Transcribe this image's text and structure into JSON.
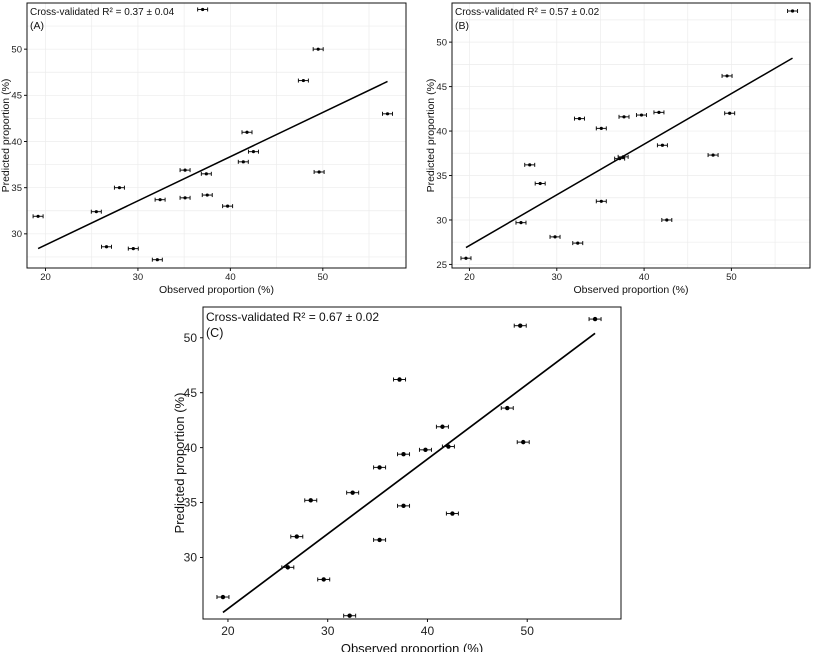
{
  "chart_data": [
    {
      "type": "scatter",
      "panel_label": "(A)",
      "annotation": "Cross-validated R² = 0.37 ± 0.04",
      "xlabel": "Observed proportion (%)",
      "ylabel": "Predicted proportion (%)",
      "xlim": [
        18,
        59
      ],
      "ylim": [
        26.3,
        55.0
      ],
      "xticks": [
        20,
        30,
        40,
        50
      ],
      "yticks": [
        30,
        35,
        40,
        45,
        50
      ],
      "grid": true,
      "points": [
        {
          "x": 19.2,
          "y": 31.9
        },
        {
          "x": 25.5,
          "y": 32.4
        },
        {
          "x": 26.6,
          "y": 28.6
        },
        {
          "x": 28.0,
          "y": 35.0
        },
        {
          "x": 29.5,
          "y": 28.4
        },
        {
          "x": 32.1,
          "y": 27.2
        },
        {
          "x": 32.4,
          "y": 33.7
        },
        {
          "x": 35.1,
          "y": 36.9
        },
        {
          "x": 35.1,
          "y": 33.9
        },
        {
          "x": 37.0,
          "y": 54.3
        },
        {
          "x": 37.4,
          "y": 36.5
        },
        {
          "x": 37.5,
          "y": 34.2
        },
        {
          "x": 39.7,
          "y": 33.0
        },
        {
          "x": 41.4,
          "y": 37.8
        },
        {
          "x": 41.8,
          "y": 41.0
        },
        {
          "x": 42.5,
          "y": 38.9
        },
        {
          "x": 47.9,
          "y": 46.6
        },
        {
          "x": 49.5,
          "y": 50.0
        },
        {
          "x": 49.6,
          "y": 36.7
        },
        {
          "x": 57.0,
          "y": 43.0
        }
      ],
      "fit_line": {
        "x": [
          19.2,
          57.0
        ],
        "y": [
          28.4,
          46.5
        ]
      }
    },
    {
      "type": "scatter",
      "panel_label": "(B)",
      "annotation": "Cross-validated R² = 0.57 ± 0.02",
      "xlabel": "Observed proportion (%)",
      "ylabel": "Predicted proportion (%)",
      "xlim": [
        18,
        59
      ],
      "ylim": [
        24.6,
        54.4
      ],
      "xticks": [
        20,
        30,
        40,
        50
      ],
      "yticks": [
        25,
        30,
        35,
        40,
        45,
        50
      ],
      "grid": true,
      "points": [
        {
          "x": 19.6,
          "y": 25.7
        },
        {
          "x": 25.9,
          "y": 29.7
        },
        {
          "x": 26.9,
          "y": 36.2
        },
        {
          "x": 28.1,
          "y": 34.1
        },
        {
          "x": 29.8,
          "y": 28.1
        },
        {
          "x": 32.4,
          "y": 27.4
        },
        {
          "x": 32.6,
          "y": 41.4
        },
        {
          "x": 35.1,
          "y": 40.3
        },
        {
          "x": 35.1,
          "y": 32.1
        },
        {
          "x": 37.2,
          "y": 36.9
        },
        {
          "x": 37.6,
          "y": 37.1
        },
        {
          "x": 37.7,
          "y": 41.6
        },
        {
          "x": 39.7,
          "y": 41.8
        },
        {
          "x": 41.7,
          "y": 42.1
        },
        {
          "x": 42.1,
          "y": 38.4
        },
        {
          "x": 42.6,
          "y": 30.0
        },
        {
          "x": 47.9,
          "y": 37.3
        },
        {
          "x": 49.5,
          "y": 46.2
        },
        {
          "x": 49.8,
          "y": 42.0
        },
        {
          "x": 57.0,
          "y": 53.5
        }
      ],
      "fit_line": {
        "x": [
          19.6,
          57.0
        ],
        "y": [
          26.9,
          48.2
        ]
      }
    },
    {
      "type": "scatter",
      "panel_label": "(C)",
      "annotation": "Cross-validated R² = 0.67 ± 0.02",
      "xlabel": "Observed proportion (%)",
      "ylabel": "Predicted proportion (%)",
      "xlim": [
        17.5,
        59.4
      ],
      "ylim": [
        24.4,
        52.8
      ],
      "xticks": [
        20,
        30,
        40,
        50
      ],
      "yticks": [
        30,
        35,
        40,
        45,
        50
      ],
      "grid": false,
      "points": [
        {
          "x": 19.5,
          "y": 26.4
        },
        {
          "x": 26.0,
          "y": 29.1
        },
        {
          "x": 26.9,
          "y": 31.9
        },
        {
          "x": 28.3,
          "y": 35.2
        },
        {
          "x": 29.6,
          "y": 28.0
        },
        {
          "x": 32.2,
          "y": 24.7
        },
        {
          "x": 32.5,
          "y": 35.9
        },
        {
          "x": 35.2,
          "y": 38.2
        },
        {
          "x": 35.2,
          "y": 31.6
        },
        {
          "x": 37.2,
          "y": 46.2
        },
        {
          "x": 37.6,
          "y": 39.4
        },
        {
          "x": 37.6,
          "y": 34.7
        },
        {
          "x": 39.8,
          "y": 39.8
        },
        {
          "x": 41.5,
          "y": 41.9
        },
        {
          "x": 42.1,
          "y": 40.1
        },
        {
          "x": 42.5,
          "y": 34.0
        },
        {
          "x": 48.0,
          "y": 43.6
        },
        {
          "x": 49.3,
          "y": 51.1
        },
        {
          "x": 49.6,
          "y": 40.5
        },
        {
          "x": 56.8,
          "y": 51.7
        }
      ],
      "fit_line": {
        "x": [
          19.5,
          56.8
        ],
        "y": [
          25.0,
          50.4
        ]
      }
    }
  ]
}
